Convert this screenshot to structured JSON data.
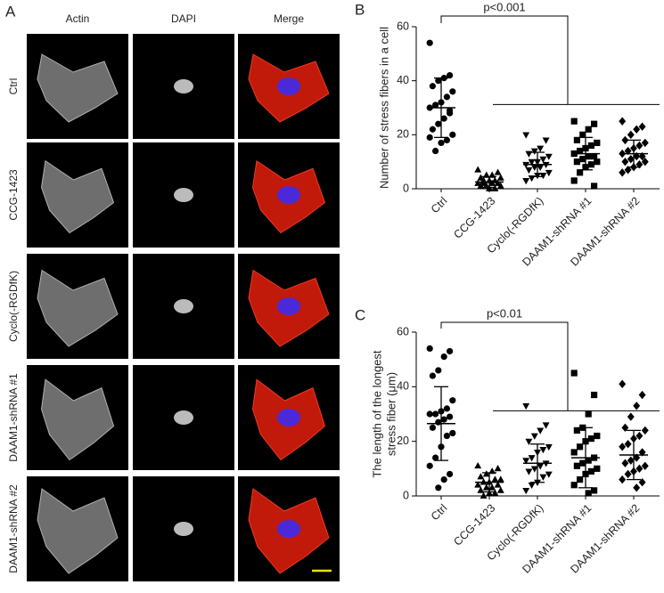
{
  "panel_a": {
    "label": "A",
    "columns": [
      "Actin",
      "DAPI",
      "Merge"
    ],
    "rows": [
      "Ctrl",
      "CCG-1423",
      "Cyclo(-RGDfK)",
      "DAAM1-shRNA #1",
      "DAAM1-shRNA #2"
    ]
  },
  "chart_data": [
    {
      "type": "dot",
      "panel": "B",
      "y_label": [
        "Number of stress fibers in a cell"
      ],
      "annotation": "p<0.001",
      "categories": [
        "Ctrl",
        "CCG-1423",
        "Cyclo(-RGDfK)",
        "DAAM1-shRNA #1",
        "DAAM1-shRNA #2"
      ],
      "markers": [
        "circle",
        "triangle",
        "triangle-down",
        "square",
        "diamond"
      ],
      "color": "#000000",
      "values": [
        [
          54,
          42,
          41,
          40,
          38,
          36,
          34,
          32,
          31,
          30,
          28,
          26,
          24,
          22,
          20,
          18,
          17,
          14,
          19,
          29
        ],
        [
          7,
          6,
          5,
          5,
          4,
          4,
          3,
          3,
          3,
          2,
          2,
          2,
          1,
          1,
          1,
          0,
          0,
          2
        ],
        [
          20,
          18,
          15,
          14,
          13,
          12,
          11,
          10,
          10,
          9,
          9,
          8,
          8,
          7,
          6,
          5,
          5,
          4,
          3
        ],
        [
          25,
          24,
          22,
          20,
          18,
          17,
          16,
          15,
          14,
          13,
          12,
          12,
          11,
          10,
          10,
          9,
          8,
          6,
          3,
          1
        ],
        [
          25,
          23,
          22,
          20,
          18,
          17,
          16,
          15,
          14,
          13,
          12,
          12,
          11,
          10,
          10,
          9,
          8,
          7,
          6
        ]
      ],
      "mean": [
        30,
        2.5,
        9,
        13,
        13
      ],
      "sd": [
        11,
        2,
        4.5,
        6,
        5
      ],
      "ylim": [
        0,
        60
      ],
      "yticks": [
        0,
        20,
        40,
        60
      ]
    },
    {
      "type": "dot",
      "panel": "C",
      "y_label": [
        "The length of the longest",
        "stress fiber (μm)"
      ],
      "annotation": "p<0.01",
      "categories": [
        "Ctrl",
        "CCG-1423",
        "Cyclo(-RGDfK)",
        "DAAM1-shRNA #1",
        "DAAM1-shRNA #2"
      ],
      "markers": [
        "circle",
        "triangle",
        "triangle-down",
        "square",
        "diamond"
      ],
      "color": "#000000",
      "values": [
        [
          54,
          53,
          51,
          46,
          44,
          35,
          32,
          31,
          30,
          30,
          29,
          28,
          27,
          25,
          23,
          22,
          18,
          14,
          11,
          8,
          6,
          3
        ],
        [
          11,
          10,
          9,
          8,
          7,
          6,
          6,
          5,
          5,
          4,
          4,
          3,
          3,
          2,
          2,
          1,
          1,
          0
        ],
        [
          33,
          26,
          24,
          22,
          20,
          18,
          17,
          16,
          14,
          13,
          12,
          11,
          10,
          9,
          8,
          7,
          5,
          4,
          2
        ],
        [
          45,
          37,
          30,
          25,
          24,
          22,
          21,
          20,
          18,
          16,
          14,
          13,
          12,
          11,
          10,
          9,
          8,
          6,
          4,
          2,
          1
        ],
        [
          41,
          37,
          33,
          29,
          25,
          24,
          22,
          21,
          19,
          18,
          16,
          14,
          13,
          12,
          11,
          10,
          9,
          8,
          6,
          5,
          3
        ]
      ],
      "mean": [
        26.5,
        5,
        12,
        14,
        15
      ],
      "sd": [
        13.5,
        3.5,
        7,
        11,
        9
      ],
      "ylim": [
        0,
        60
      ],
      "yticks": [
        0,
        20,
        40,
        60
      ]
    }
  ]
}
